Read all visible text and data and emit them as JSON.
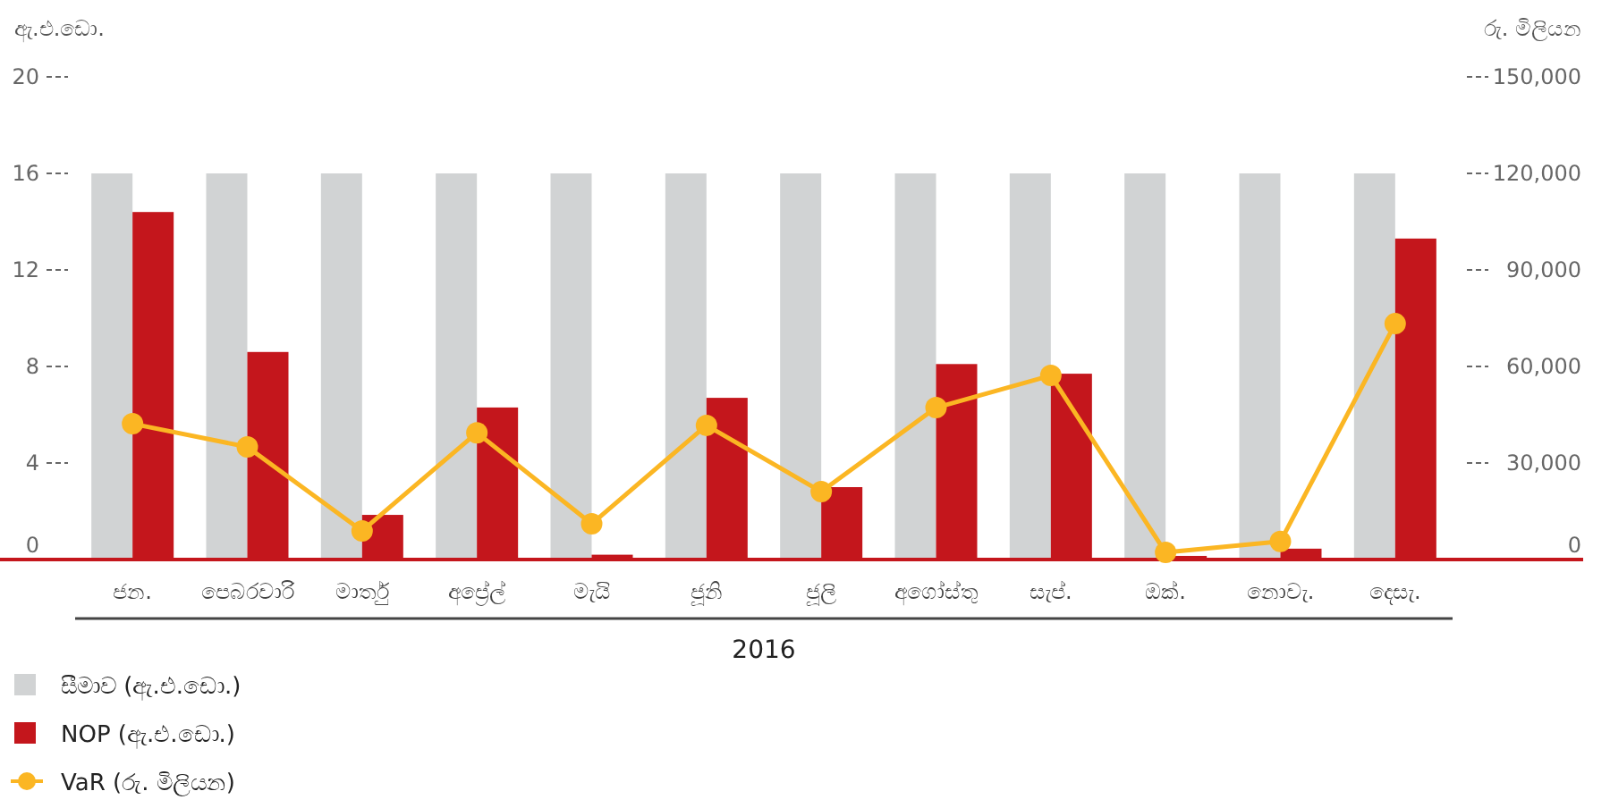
{
  "chart_data": {
    "type": "bar",
    "xlabel": "2016",
    "ylabel": "ඇ.එ.ඩො.",
    "y2label": "රු. මිලියන",
    "categories": [
      "ජන.",
      "පෙබරවාරි",
      "මාර්තු",
      "අප්‍රේල්",
      "මැයි",
      "ජූනි",
      "ජූලි",
      "අගෝස්තු",
      "සැප්.",
      "ඔක්.",
      "නොවැ.",
      "දෙසැ."
    ],
    "series": [
      {
        "name": "සීමාව (ඇ.එ.ඩො.)",
        "color": "#d1d3d4",
        "values": [
          16,
          16,
          16,
          16,
          16,
          16,
          16,
          16,
          16,
          16,
          16,
          16
        ]
      },
      {
        "name": "NOP (ඇ.එ.ඩො.)",
        "color": "#c4161c",
        "values": [
          14.4,
          8.6,
          1.85,
          6.3,
          0.2,
          6.7,
          3.0,
          8.1,
          7.7,
          0.15,
          0.45,
          13.3
        ]
      },
      {
        "name": "VaR (රු. මිලියන)",
        "type": "line",
        "axis": "y2",
        "color": "#fbb623",
        "marker": "circle",
        "values": [
          42200,
          35000,
          8900,
          39400,
          11100,
          41700,
          21100,
          47200,
          57200,
          2200,
          5600,
          73300
        ]
      }
    ],
    "ylim": [
      0,
      20
    ],
    "yticks": [
      0,
      4,
      8,
      12,
      16,
      20
    ],
    "y2lim": [
      0,
      150000
    ],
    "y2ticks": [
      {
        "value": 0,
        "label": "0"
      },
      {
        "value": 30000,
        "label": "30,000"
      },
      {
        "value": 60000,
        "label": "60,000"
      },
      {
        "value": 90000,
        "label": "90,000"
      },
      {
        "value": 120000,
        "label": "120,000"
      },
      {
        "value": 150000,
        "label": "150,000"
      }
    ],
    "legend": "bottom",
    "grid": false
  }
}
